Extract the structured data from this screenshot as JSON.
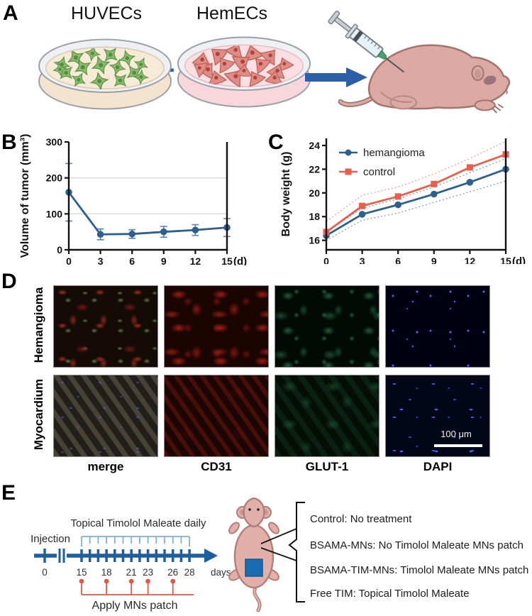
{
  "panels": {
    "a": "A",
    "b": "B",
    "c": "C",
    "d": "D",
    "e": "E"
  },
  "panel_a": {
    "dish1_title": "HUVECs",
    "dish2_title": "HemECs",
    "plus": "+"
  },
  "chart_data": [
    {
      "type": "line",
      "name": "tumor-volume",
      "title": "",
      "ylabel": "Volume of tumor (mm³)",
      "xlabel": "(d)",
      "x": [
        0,
        3,
        6,
        9,
        12,
        15
      ],
      "ylim": [
        0,
        300
      ],
      "yticks": [
        0,
        100,
        200,
        300
      ],
      "gridlines": [
        100,
        200
      ],
      "legend_position": null,
      "series": [
        {
          "name": "tumor volume",
          "color": "#2e608f",
          "marker": "circle",
          "values": [
            160,
            43,
            44,
            50,
            55,
            62
          ],
          "errors": [
            80,
            15,
            12,
            15,
            15,
            25
          ]
        }
      ]
    },
    {
      "type": "line",
      "name": "body-weight",
      "title": "",
      "ylabel": "Body weight (g)",
      "xlabel": "(d)",
      "x": [
        0,
        3,
        6,
        9,
        12,
        15
      ],
      "ylim": [
        15.2,
        24.6
      ],
      "yticks": [
        16,
        18,
        20,
        22,
        24
      ],
      "gridlines": [],
      "legend_position": "top-left",
      "series": [
        {
          "name": "hemangioma",
          "color": "#2e608f",
          "marker": "circle",
          "values": [
            16.4,
            18.2,
            19.0,
            19.9,
            20.9,
            22.0
          ],
          "band_upper": [
            16.7,
            18.7,
            19.5,
            20.5,
            21.7,
            22.9
          ],
          "band_lower": [
            16.0,
            17.7,
            18.3,
            19.2,
            20.1,
            21.0
          ]
        },
        {
          "name": "control",
          "color": "#e8604c",
          "marker": "square",
          "values": [
            16.7,
            18.9,
            19.7,
            20.75,
            22.15,
            23.25
          ],
          "band_upper": [
            17.6,
            19.8,
            20.5,
            21.6,
            22.9,
            24.35
          ],
          "band_lower": null
        }
      ]
    }
  ],
  "panel_d": {
    "row_labels": [
      "Hemangioma",
      "Myocardium"
    ],
    "col_labels": [
      "merge",
      "CD31",
      "GLUT-1",
      "DAPI"
    ],
    "scale_bar_label": "100 μm"
  },
  "panel_e": {
    "top_label": "Topical Timolol Maleate daily",
    "injection_label": "Injection",
    "axis_days": [
      0,
      15,
      18,
      21,
      23,
      26,
      28
    ],
    "daily_tick_range": [
      15,
      28
    ],
    "days_unit": "days",
    "mns_days": [
      15,
      18,
      21,
      23,
      26
    ],
    "bottom_label": "Apply MNs patch",
    "groups": [
      "Control: No treatment",
      "BSAMA-MNs: No Timolol Maleate MNs patch",
      "BSAMA-TIM-MNs: Timolol Maleate MNs patch",
      "Free TIM: Topical Timolol Maleate"
    ]
  },
  "colors": {
    "series_blue": "#2e608f",
    "series_red": "#e8604c",
    "timeline_blue": "#1f5f9e",
    "timeline_lightblue": "#7fb0d6",
    "timeline_red": "#e2574a",
    "patch_blue": "#1b6cb3",
    "arrow_blue": "#2d5fa8"
  }
}
